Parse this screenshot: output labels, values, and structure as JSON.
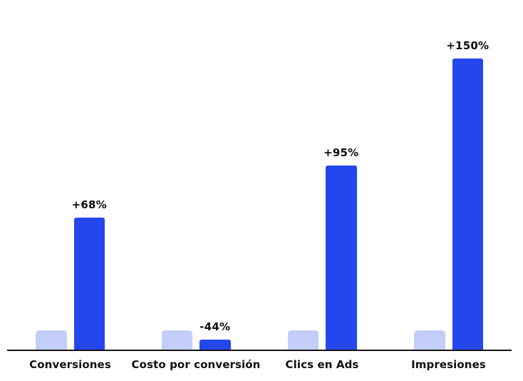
{
  "background": "#ffffff",
  "chart_data": {
    "type": "bar",
    "title": "",
    "xlabel": "",
    "ylabel": "",
    "categories": [
      "Conversiones",
      "Costo por conversión",
      "Clics en Ads",
      "Impresiones"
    ],
    "series": [
      {
        "name": "baseline-bar",
        "color": "#c2cef7",
        "values": [
          10,
          10,
          10,
          10
        ]
      },
      {
        "name": "change-bar",
        "color": "#2347ec",
        "values": [
          68,
          5,
          95,
          150
        ]
      }
    ],
    "data_labels": [
      "+68%",
      "-44%",
      "+95%",
      "+150%"
    ],
    "label_color": "#0d0d0d",
    "category_label_color": "#111111",
    "axis_color": "#141414",
    "ylim": [
      0,
      160
    ],
    "grid": false,
    "legend": false
  }
}
